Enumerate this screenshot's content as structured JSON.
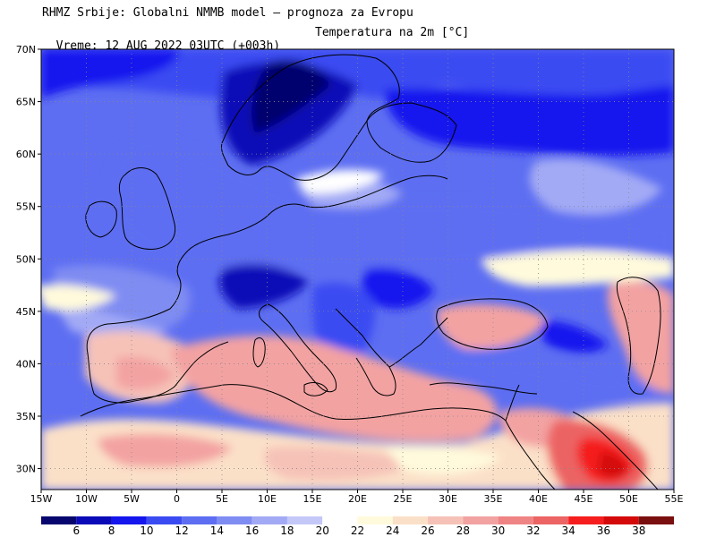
{
  "header": {
    "line1": "RHMZ Srbije: Globalni NMMB model – prognoza za Evropu",
    "line2_valid": "Vreme: 12 AUG 2022 03UTC (+003h)",
    "line2_param": "Temperatura na 2m [°C]"
  },
  "map": {
    "lat_range": [
      28,
      70
    ],
    "lon_range": [
      -15,
      55
    ],
    "lat_ticks": [
      {
        "value": 70,
        "label": "70N"
      },
      {
        "value": 65,
        "label": "65N"
      },
      {
        "value": 60,
        "label": "60N"
      },
      {
        "value": 55,
        "label": "55N"
      },
      {
        "value": 50,
        "label": "50N"
      },
      {
        "value": 45,
        "label": "45N"
      },
      {
        "value": 40,
        "label": "40N"
      },
      {
        "value": 35,
        "label": "35N"
      },
      {
        "value": 30,
        "label": "30N"
      }
    ],
    "lon_ticks": [
      {
        "value": -15,
        "label": "15W"
      },
      {
        "value": -10,
        "label": "10W"
      },
      {
        "value": -5,
        "label": "5W"
      },
      {
        "value": 0,
        "label": "0"
      },
      {
        "value": 5,
        "label": "5E"
      },
      {
        "value": 10,
        "label": "10E"
      },
      {
        "value": 15,
        "label": "15E"
      },
      {
        "value": 20,
        "label": "20E"
      },
      {
        "value": 25,
        "label": "25E"
      },
      {
        "value": 30,
        "label": "30E"
      },
      {
        "value": 35,
        "label": "35E"
      },
      {
        "value": 40,
        "label": "40E"
      },
      {
        "value": 45,
        "label": "45E"
      },
      {
        "value": 50,
        "label": "50E"
      },
      {
        "value": 55,
        "label": "55E"
      }
    ],
    "grid": true,
    "colors": {
      "c4": "#06066e",
      "c6": "#0a0ab8",
      "c8": "#1515ee",
      "c10": "#3b4bf2",
      "c12": "#5d6ef2",
      "c14": "#7f8cf2",
      "c16": "#a3aaf5",
      "c18": "#c4c8f8",
      "c20": "#ffffff",
      "c22": "#fffadc",
      "c24": "#fbe0c8",
      "c26": "#f6c2b8",
      "c28": "#f3a2a2",
      "c30": "#ef8484",
      "c32": "#ec6464",
      "c34": "#f51d1d",
      "c36": "#d40a0a",
      "c38": "#7a0f0f"
    }
  },
  "colorbar": {
    "labels": [
      "6",
      "8",
      "10",
      "12",
      "14",
      "16",
      "18",
      "20",
      "22",
      "24",
      "26",
      "28",
      "30",
      "32",
      "34",
      "36",
      "38"
    ],
    "colors": [
      "#06066e",
      "#0a0ab8",
      "#1515ee",
      "#3b4bf2",
      "#5d6ef2",
      "#7f8cf2",
      "#a3aaf5",
      "#c4c8f8",
      "#ffffff",
      "#fffadc",
      "#fbe0c8",
      "#f6c2b8",
      "#f3a2a2",
      "#ef8484",
      "#ec6464",
      "#f51d1d",
      "#d40a0a",
      "#7a0f0f"
    ]
  }
}
